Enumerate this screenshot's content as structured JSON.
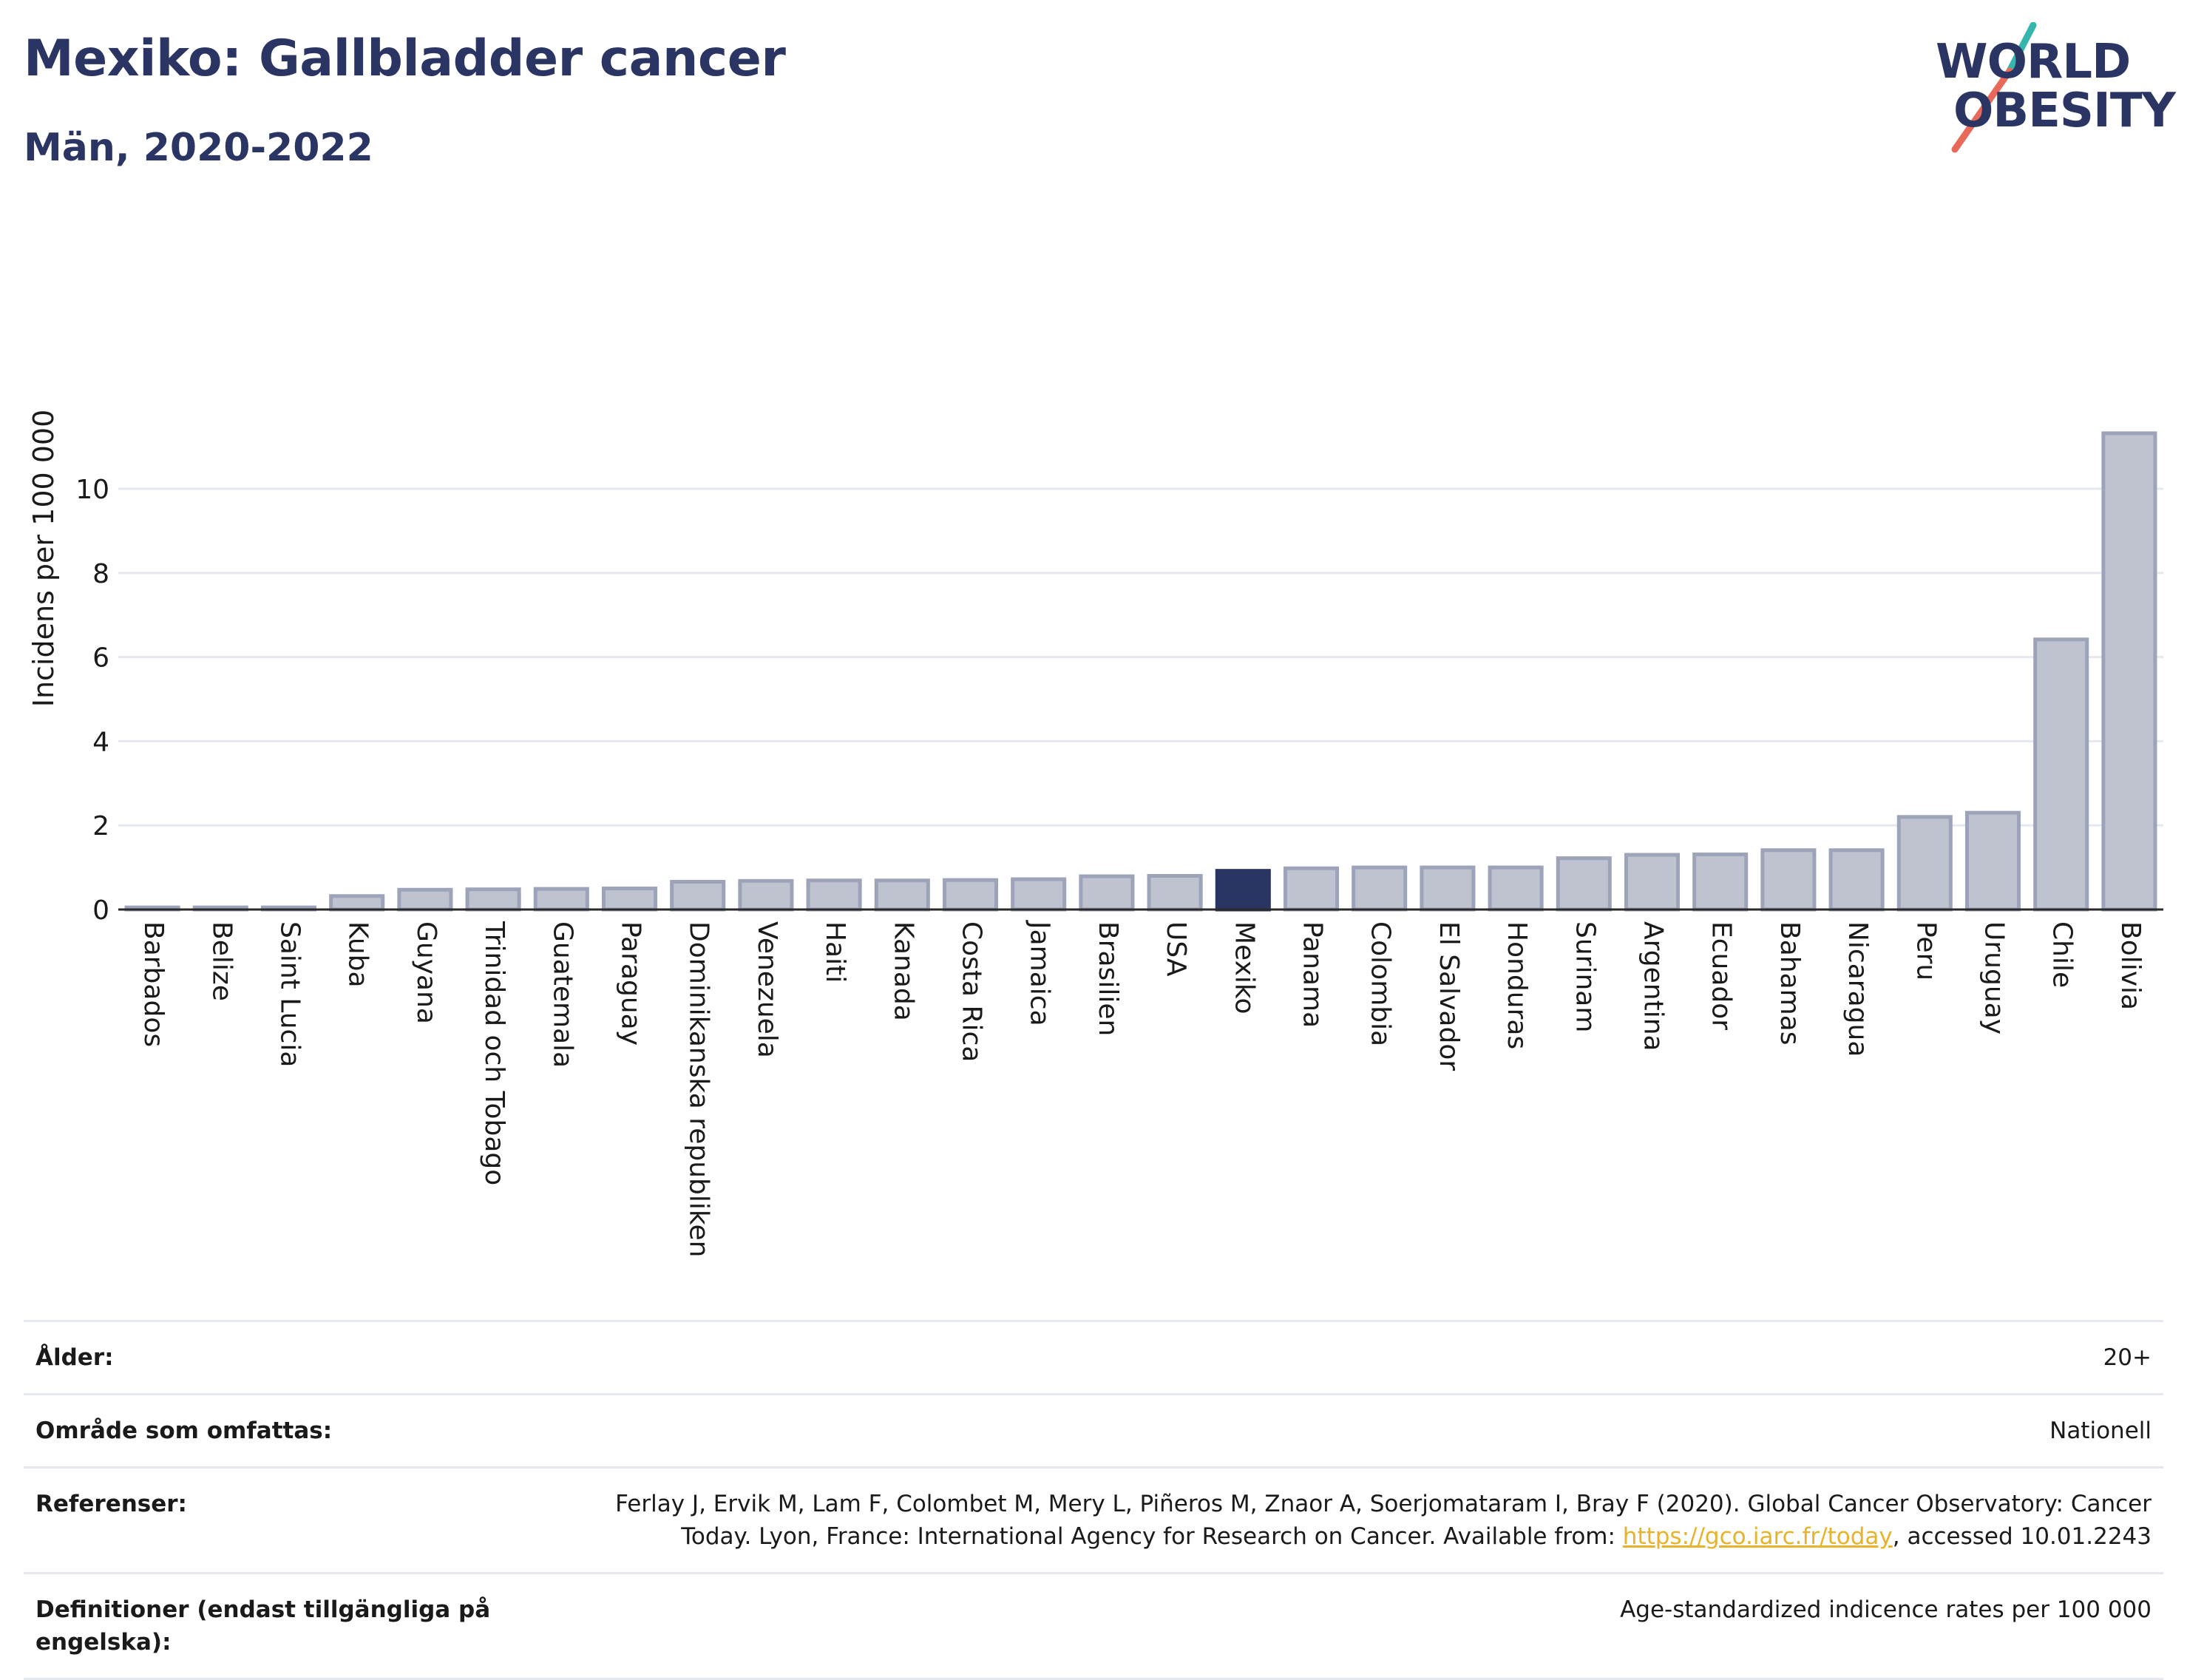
{
  "header": {
    "title": "Mexiko: Gallbladder cancer",
    "subtitle": "Män, 2020-2022"
  },
  "logo": {
    "line1": "WORLD",
    "line2": "OBESITY",
    "accent_colors": [
      "#34b6ae",
      "#e8695a"
    ]
  },
  "colors": {
    "highlight": "#2b3563",
    "bar": "#bfc3d0",
    "bar_stroke": "#9da3b8",
    "grid": "#e6e8ef",
    "link": "#e7b32a"
  },
  "chart_data": {
    "type": "bar",
    "ylabel": "Incidens per 100 000",
    "ylim": [
      0,
      11.6
    ],
    "yticks": [
      0,
      2,
      4,
      6,
      8,
      10
    ],
    "grid": true,
    "highlight": "Mexiko",
    "categories": [
      "Barbados",
      "Belize",
      "Saint Lucia",
      "Kuba",
      "Guyana",
      "Trinidad och Tobago",
      "Guatemala",
      "Paraguay",
      "Dominikanska republiken",
      "Venezuela",
      "Haiti",
      "Kanada",
      "Costa Rica",
      "Jamaica",
      "Brasilien",
      "USA",
      "Mexiko",
      "Panama",
      "Colombia",
      "El Salvador",
      "Honduras",
      "Surinam",
      "Argentina",
      "Ecuador",
      "Bahamas",
      "Nicaragua",
      "Peru",
      "Uruguay",
      "Chile",
      "Bolivia"
    ],
    "values": [
      0.05,
      0.05,
      0.05,
      0.32,
      0.47,
      0.48,
      0.49,
      0.5,
      0.66,
      0.68,
      0.69,
      0.69,
      0.7,
      0.72,
      0.79,
      0.8,
      0.92,
      0.98,
      1.0,
      1.0,
      1.0,
      1.22,
      1.3,
      1.31,
      1.41,
      1.41,
      2.2,
      2.3,
      6.42,
      11.32
    ]
  },
  "meta": {
    "age_label": "Ålder:",
    "age_value": "20+",
    "area_label": "Område som omfattas:",
    "area_value": "Nationell",
    "refs_label": "Referenser:",
    "refs_text_1": "Ferlay J, Ervik M, Lam F, Colombet M, Mery L, Piñeros M, Znaor A, Soerjomataram I, Bray F (2020). Global Cancer Observatory: Cancer Today. Lyon, France: International Agency for Research on Cancer. Available from: ",
    "refs_link": "https://gco.iarc.fr/today",
    "refs_text_2": ", accessed 10.01.2243",
    "defs_label": "Definitioner (endast tillgängliga på engelska):",
    "defs_value": "Age-standardized indicence rates per 100 000"
  }
}
